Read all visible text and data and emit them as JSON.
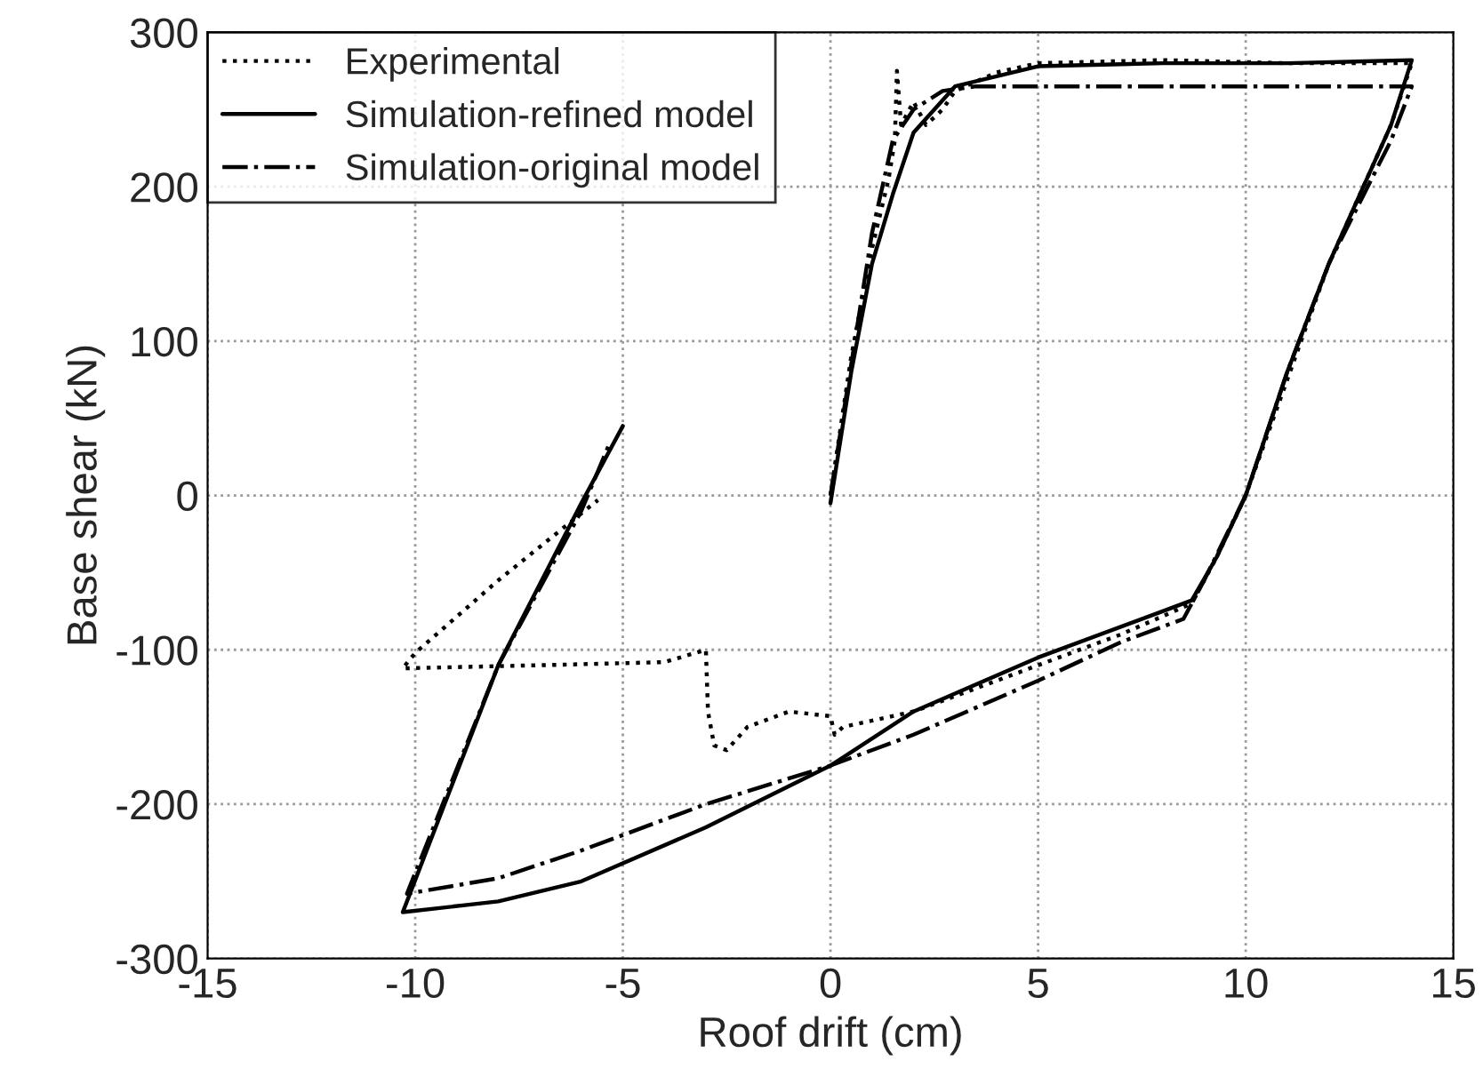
{
  "chart_data": {
    "type": "line",
    "xlabel": "Roof drift (cm)",
    "ylabel": "Base shear (kN)",
    "xlim": [
      -15,
      15
    ],
    "ylim": [
      -300,
      300
    ],
    "xticks": [
      -15,
      -10,
      -5,
      0,
      5,
      10,
      15
    ],
    "yticks": [
      -300,
      -200,
      -100,
      0,
      100,
      200,
      300
    ],
    "grid": true,
    "legend": "top left",
    "series": [
      {
        "name": "Experimental",
        "color": "#000000",
        "line_style": "dotted",
        "x": [
          0,
          0.5,
          1,
          1.4,
          1.55,
          1.6,
          1.7,
          2,
          2.3,
          2.7,
          3,
          4,
          5,
          8,
          11,
          14,
          13.5,
          12,
          11,
          10,
          9.3,
          8.7,
          7,
          5,
          2,
          0.3,
          0.1,
          0,
          -1,
          -2,
          -2.5,
          -2.8,
          -2.95,
          -3,
          -4,
          -7,
          -10.3,
          -10,
          -8,
          -5.6
        ],
        "values": [
          0,
          90,
          160,
          205,
          230,
          275,
          240,
          255,
          240,
          250,
          262,
          274,
          280,
          282,
          280,
          280,
          240,
          150,
          75,
          0,
          -40,
          -70,
          -90,
          -110,
          -140,
          -150,
          -155,
          -143,
          -140,
          -150,
          -165,
          -162,
          -140,
          -100,
          -108,
          -110,
          -112,
          -102,
          -55,
          -3
        ]
      },
      {
        "name": "Simulation-refined model",
        "color": "#000000",
        "line_style": "solid",
        "x": [
          0,
          0.5,
          1,
          1.5,
          2,
          3,
          5,
          8,
          11,
          14,
          13.5,
          12,
          11,
          10,
          9.3,
          8.7,
          8,
          5,
          2,
          0,
          -3,
          -6,
          -8,
          -10.3,
          -8,
          -6,
          -5
        ],
        "values": [
          -5,
          80,
          150,
          195,
          235,
          265,
          278,
          280,
          280,
          282,
          240,
          150,
          80,
          0,
          -40,
          -68,
          -75,
          -105,
          -140,
          -175,
          -215,
          -250,
          -263,
          -270,
          -110,
          -5,
          45
        ]
      },
      {
        "name": "Simulation-original model",
        "color": "#000000",
        "line_style": "dashdot",
        "x": [
          0,
          0.5,
          1,
          1.5,
          2,
          2.7,
          3.5,
          8,
          14,
          13.5,
          12,
          11,
          10,
          9,
          8.5,
          7,
          5,
          2,
          0,
          -3,
          -6,
          -8,
          -10.2,
          -8,
          -6,
          -5.3
        ],
        "values": [
          0,
          85,
          170,
          230,
          250,
          262,
          265,
          265,
          265,
          230,
          150,
          80,
          0,
          -55,
          -80,
          -95,
          -120,
          -155,
          -175,
          -200,
          -230,
          -248,
          -258,
          -110,
          -10,
          35
        ]
      }
    ]
  }
}
